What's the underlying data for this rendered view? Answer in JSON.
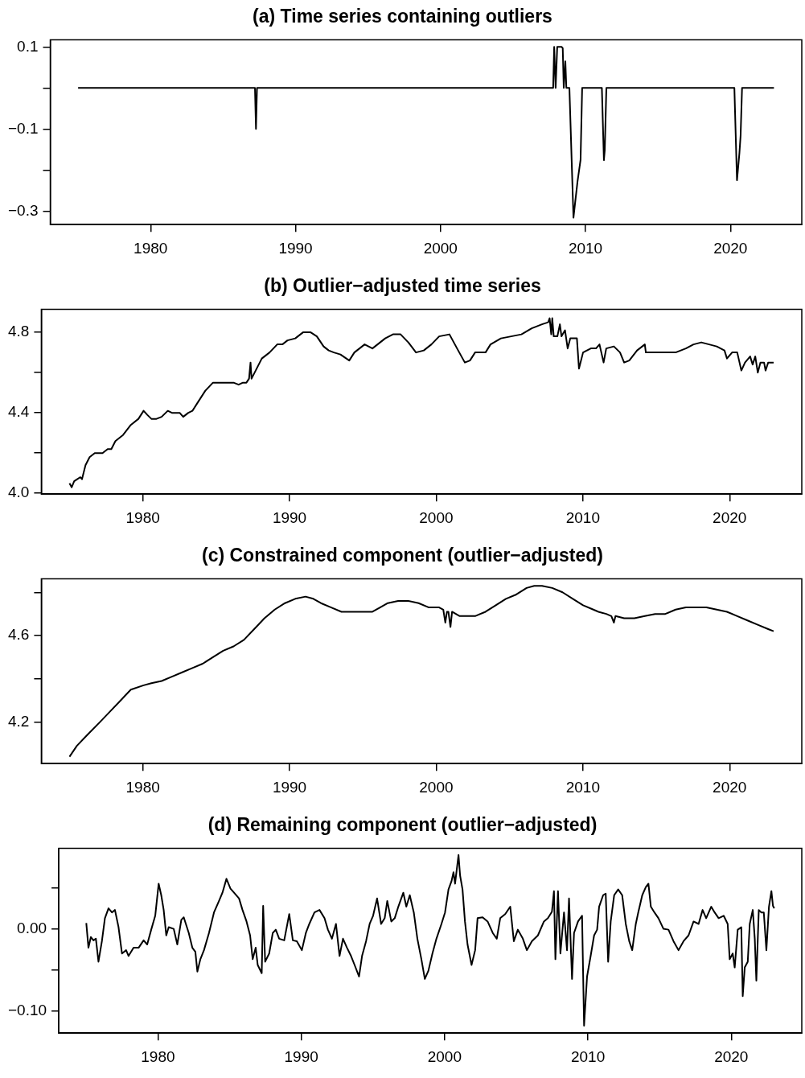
{
  "chart_data": [
    {
      "type": "line",
      "title": "(a) Time series containing outliers",
      "color": "#000000",
      "xlim": [
        1973.08,
        2024.92
      ],
      "xticks": [
        1980,
        1990,
        2000,
        2010,
        2020
      ],
      "ylim": [
        -0.333,
        0.117
      ],
      "yticks": [
        0.1,
        {
          "value": 0,
          "label": null
        },
        {
          "value": -0.1,
          "label": "−0.1"
        },
        {
          "value": -0.2,
          "label": null
        },
        {
          "value": -0.3,
          "label": "−0.3"
        }
      ],
      "x": [
        1975,
        1987.2,
        1987.27,
        1987.34,
        2007.77,
        2007.84,
        2007.94,
        2008.05,
        2008.36,
        2008.43,
        2008.5,
        2008.61,
        2008.68,
        2008.89,
        2009.17,
        2009.45,
        2009.66,
        2009.77,
        2011.13,
        2011.27,
        2011.33,
        2011.44,
        2020.27,
        2020.45,
        2020.62,
        2020.7,
        2020.8,
        2023
      ],
      "values": [
        0,
        0,
        -0.1,
        0,
        0,
        0.1,
        0,
        0.1,
        0.1,
        0.097,
        0,
        0.065,
        0,
        0,
        -0.316,
        -0.228,
        -0.175,
        0,
        0,
        -0.176,
        -0.151,
        0,
        0,
        -0.225,
        -0.158,
        -0.116,
        0,
        0
      ]
    },
    {
      "type": "line",
      "title": "(b) Outlier−adjusted time series",
      "color": "#000000",
      "xlim": [
        1973.08,
        2024.92
      ],
      "xticks": [
        1980,
        1990,
        2000,
        2010,
        2020
      ],
      "ylim": [
        3.996,
        4.914
      ],
      "yticks": [
        {
          "value": 4,
          "label": "4.0"
        },
        {
          "value": 4.2,
          "label": null
        },
        4.4,
        {
          "value": 4.6,
          "label": null
        },
        4.8
      ],
      "x": [
        1975,
        1975.15,
        1975.32,
        1975.74,
        1975.85,
        1976.09,
        1976.37,
        1976.72,
        1977.07,
        1977.25,
        1977.6,
        1977.85,
        1978.13,
        1978.65,
        1979.18,
        1979.7,
        1980.05,
        1980.3,
        1980.58,
        1980.93,
        1981.28,
        1981.7,
        1981.98,
        1982.51,
        1982.75,
        1983.1,
        1983.38,
        1983.73,
        1984.26,
        1984.78,
        1985.13,
        1985.66,
        1986.18,
        1986.53,
        1986.82,
        1987.06,
        1987.24,
        1987.34,
        1987.41,
        1987.76,
        1988.11,
        1988.64,
        1989.16,
        1989.51,
        1989.86,
        1990.39,
        1990.92,
        1991.44,
        1991.86,
        1992.32,
        1992.67,
        1993.02,
        1993.47,
        1994.07,
        1994.42,
        1995.12,
        1995.65,
        1996,
        1996.52,
        1997.05,
        1997.57,
        1998.1,
        1998.62,
        1999.15,
        1999.67,
        2000.2,
        2000.9,
        2001.42,
        2001.95,
        2002.3,
        2002.65,
        2003.36,
        2003.7,
        2004.41,
        2005.11,
        2005.81,
        2006.51,
        2007.21,
        2007.63,
        2007.73,
        2007.84,
        2007.91,
        2008.01,
        2008.26,
        2008.43,
        2008.54,
        2008.78,
        2008.96,
        2009.14,
        2009.59,
        2009.73,
        2010.01,
        2010.54,
        2010.89,
        2011.13,
        2011.41,
        2011.59,
        2012.11,
        2012.53,
        2012.81,
        2013.16,
        2013.69,
        2014.22,
        2014.29,
        2014.74,
        2015.27,
        2015.79,
        2016.32,
        2017.02,
        2017.54,
        2018.07,
        2018.6,
        2019.12,
        2019.65,
        2019.82,
        2020.17,
        2020.52,
        2020.8,
        2021.05,
        2021.4,
        2021.57,
        2021.75,
        2021.92,
        2022.1,
        2022.35,
        2022.45,
        2022.63,
        2023
      ],
      "values": [
        4.05,
        4.03,
        4.06,
        4.08,
        4.07,
        4.14,
        4.18,
        4.2,
        4.2,
        4.2,
        4.22,
        4.22,
        4.26,
        4.29,
        4.34,
        4.37,
        4.41,
        4.39,
        4.37,
        4.37,
        4.38,
        4.41,
        4.4,
        4.4,
        4.38,
        4.4,
        4.41,
        4.45,
        4.51,
        4.55,
        4.55,
        4.55,
        4.55,
        4.54,
        4.55,
        4.55,
        4.57,
        4.65,
        4.57,
        4.62,
        4.67,
        4.7,
        4.74,
        4.74,
        4.76,
        4.77,
        4.8,
        4.8,
        4.78,
        4.73,
        4.71,
        4.7,
        4.69,
        4.66,
        4.7,
        4.74,
        4.72,
        4.74,
        4.77,
        4.79,
        4.79,
        4.75,
        4.7,
        4.71,
        4.74,
        4.78,
        4.79,
        4.72,
        4.65,
        4.66,
        4.7,
        4.7,
        4.74,
        4.77,
        4.78,
        4.79,
        4.82,
        4.84,
        4.85,
        4.87,
        4.79,
        4.87,
        4.78,
        4.78,
        4.84,
        4.78,
        4.81,
        4.72,
        4.77,
        4.77,
        4.62,
        4.7,
        4.72,
        4.72,
        4.74,
        4.65,
        4.72,
        4.73,
        4.7,
        4.65,
        4.66,
        4.71,
        4.74,
        4.7,
        4.7,
        4.7,
        4.7,
        4.7,
        4.72,
        4.74,
        4.75,
        4.74,
        4.73,
        4.71,
        4.67,
        4.7,
        4.7,
        4.61,
        4.65,
        4.68,
        4.64,
        4.68,
        4.6,
        4.65,
        4.65,
        4.61,
        4.65,
        4.65
      ]
    },
    {
      "type": "line",
      "title": "(c) Constrained component (outlier−adjusted)",
      "color": "#000000",
      "xlim": [
        1973.08,
        2024.92
      ],
      "xticks": [
        1980,
        1990,
        2000,
        2010,
        2020
      ],
      "ylim": [
        4.008,
        4.862
      ],
      "yticks": [
        4.2,
        {
          "value": 4.4,
          "label": null
        },
        4.6,
        {
          "value": 4.8,
          "label": null
        }
      ],
      "x": [
        1975,
        1975.5,
        1976.2,
        1977.07,
        1977.78,
        1978.48,
        1979.18,
        1980.05,
        1980.58,
        1981.28,
        1981.98,
        1982.68,
        1983.38,
        1984.08,
        1984.78,
        1985.48,
        1986.18,
        1986.89,
        1987.59,
        1988.29,
        1988.99,
        1989.69,
        1990.39,
        1991.09,
        1991.62,
        1992.14,
        1992.84,
        1993.54,
        1994.24,
        1994.94,
        1995.65,
        1996.17,
        1996.7,
        1997.4,
        1998.1,
        1998.8,
        1999.5,
        2000.2,
        2000.48,
        2000.62,
        2000.73,
        2000.83,
        2000.97,
        2001.08,
        2001.6,
        2002.13,
        2002.65,
        2003.36,
        2004.06,
        2004.75,
        2005.46,
        2006.16,
        2006.68,
        2007.21,
        2007.91,
        2008.61,
        2009.31,
        2010.01,
        2010.71,
        2011.06,
        2011.59,
        2011.94,
        2012.11,
        2012.22,
        2012.81,
        2013.51,
        2014.22,
        2014.92,
        2015.62,
        2016.32,
        2017.02,
        2017.72,
        2018.42,
        2019.12,
        2019.82,
        2020.52,
        2021.22,
        2021.92,
        2022.63,
        2023
      ],
      "values": [
        4.04,
        4.09,
        4.14,
        4.2,
        4.25,
        4.3,
        4.35,
        4.37,
        4.38,
        4.39,
        4.41,
        4.43,
        4.45,
        4.47,
        4.5,
        4.53,
        4.55,
        4.58,
        4.63,
        4.68,
        4.72,
        4.75,
        4.77,
        4.78,
        4.77,
        4.75,
        4.73,
        4.71,
        4.71,
        4.71,
        4.71,
        4.73,
        4.75,
        4.76,
        4.76,
        4.75,
        4.73,
        4.73,
        4.72,
        4.66,
        4.71,
        4.71,
        4.64,
        4.71,
        4.69,
        4.69,
        4.69,
        4.71,
        4.74,
        4.77,
        4.79,
        4.82,
        4.83,
        4.83,
        4.82,
        4.8,
        4.77,
        4.74,
        4.72,
        4.71,
        4.7,
        4.69,
        4.66,
        4.69,
        4.68,
        4.68,
        4.69,
        4.7,
        4.7,
        4.72,
        4.73,
        4.73,
        4.73,
        4.72,
        4.71,
        4.69,
        4.67,
        4.65,
        4.63,
        4.62
      ]
    },
    {
      "type": "line",
      "title": "(d) Remaining component (outlier−adjusted)",
      "color": "#000000",
      "xlim": [
        1973.08,
        2024.92
      ],
      "xticks": [
        1980,
        1990,
        2000,
        2010,
        2020
      ],
      "ylim": [
        -0.127,
        0.098
      ],
      "yticks": [
        {
          "value": -0.1,
          "label": "−0.10"
        },
        {
          "value": -0.05,
          "label": null
        },
        {
          "value": 0,
          "label": "0.00"
        },
        {
          "value": 0.05,
          "label": null
        }
      ],
      "x": [
        1975,
        1975.15,
        1975.32,
        1975.5,
        1975.67,
        1975.85,
        1976.09,
        1976.3,
        1976.55,
        1976.79,
        1977,
        1977.25,
        1977.49,
        1977.78,
        1977.95,
        1978.3,
        1978.65,
        1979,
        1979.25,
        1979.53,
        1979.81,
        1980.05,
        1980.23,
        1980.4,
        1980.58,
        1980.75,
        1981.1,
        1981.35,
        1981.63,
        1981.8,
        1982.15,
        1982.4,
        1982.61,
        1982.75,
        1982.96,
        1983.21,
        1983.56,
        1983.91,
        1984.26,
        1984.5,
        1984.78,
        1985.06,
        1985.31,
        1985.66,
        1985.9,
        1986.18,
        1986.43,
        1986.61,
        1986.82,
        1986.96,
        1987.24,
        1987.34,
        1987.48,
        1987.76,
        1988.01,
        1988.22,
        1988.46,
        1988.81,
        1989.16,
        1989.41,
        1989.69,
        1990.04,
        1990.32,
        1990.56,
        1990.92,
        1991.27,
        1991.62,
        1991.86,
        1992.14,
        1992.42,
        1992.67,
        1992.91,
        1993.19,
        1993.47,
        1993.72,
        1994.03,
        1994.24,
        1994.52,
        1994.77,
        1995.01,
        1995.29,
        1995.57,
        1995.82,
        1996,
        1996.28,
        1996.52,
        1996.77,
        1997.12,
        1997.33,
        1997.57,
        1997.85,
        1998.1,
        1998.38,
        1998.62,
        1998.87,
        1999.15,
        1999.43,
        1999.78,
        2000.03,
        2000.27,
        2000.48,
        2000.62,
        2000.73,
        2000.97,
        2001.08,
        2001.25,
        2001.42,
        2001.6,
        2001.88,
        2002.13,
        2002.3,
        2002.65,
        2003,
        2003.36,
        2003.64,
        2003.88,
        2004.23,
        2004.58,
        2004.83,
        2005.11,
        2005.46,
        2005.74,
        2006.09,
        2006.51,
        2006.93,
        2007.21,
        2007.49,
        2007.63,
        2007.73,
        2007.91,
        2008.08,
        2008.33,
        2008.54,
        2008.68,
        2008.89,
        2009.03,
        2009.31,
        2009.59,
        2009.73,
        2009.94,
        2010.19,
        2010.43,
        2010.64,
        2010.78,
        2011.06,
        2011.24,
        2011.41,
        2011.59,
        2011.83,
        2012.11,
        2012.39,
        2012.64,
        2012.88,
        2013.09,
        2013.34,
        2013.51,
        2013.79,
        2014.04,
        2014.22,
        2014.39,
        2014.64,
        2014.92,
        2015.27,
        2015.62,
        2015.97,
        2016.32,
        2016.67,
        2017.02,
        2017.37,
        2017.72,
        2018,
        2018.25,
        2018.6,
        2018.84,
        2019.12,
        2019.47,
        2019.75,
        2019.89,
        2020.1,
        2020.24,
        2020.45,
        2020.7,
        2020.8,
        2020.94,
        2021.15,
        2021.29,
        2021.5,
        2021.64,
        2021.75,
        2021.92,
        2022.1,
        2022.27,
        2022.45,
        2022.63,
        2022.8,
        2022.91,
        2023
      ],
      "values": [
        0.007,
        -0.023,
        -0.01,
        -0.014,
        -0.012,
        -0.04,
        -0.015,
        0.013,
        0.025,
        0.02,
        0.023,
        0.002,
        -0.03,
        -0.026,
        -0.033,
        -0.023,
        -0.023,
        -0.014,
        -0.019,
        -0.001,
        0.016,
        0.055,
        0.041,
        0.023,
        -0.008,
        0.002,
        0,
        -0.019,
        0.011,
        0.014,
        -0.005,
        -0.023,
        -0.028,
        -0.052,
        -0.037,
        -0.026,
        -0.005,
        0.02,
        0.034,
        0.044,
        0.061,
        0.049,
        0.044,
        0.037,
        0.023,
        0.009,
        -0.008,
        -0.037,
        -0.023,
        -0.044,
        -0.054,
        0.028,
        -0.04,
        -0.03,
        -0.005,
        -0.001,
        -0.012,
        -0.014,
        0.018,
        -0.014,
        -0.015,
        -0.026,
        -0.005,
        0.006,
        0.02,
        0.023,
        0.013,
        -0.001,
        -0.012,
        0.006,
        -0.033,
        -0.012,
        -0.023,
        -0.033,
        -0.044,
        -0.058,
        -0.033,
        -0.015,
        0.006,
        0.016,
        0.037,
        0.006,
        0.013,
        0.034,
        0.009,
        0.013,
        0.027,
        0.044,
        0.027,
        0.041,
        0.02,
        -0.012,
        -0.037,
        -0.061,
        -0.051,
        -0.03,
        -0.012,
        0.006,
        0.02,
        0.048,
        0.058,
        0.069,
        0.055,
        0.09,
        0.065,
        0.048,
        0.009,
        -0.019,
        -0.044,
        -0.026,
        0.013,
        0.014,
        0.009,
        -0.005,
        -0.012,
        0.013,
        0.018,
        0.027,
        -0.015,
        -0.001,
        -0.012,
        -0.026,
        -0.015,
        -0.008,
        0.009,
        0.013,
        0.021,
        0.046,
        -0.037,
        0.046,
        -0.03,
        0.02,
        -0.026,
        0.037,
        -0.061,
        -0.005,
        0.009,
        0.016,
        -0.118,
        -0.058,
        -0.033,
        -0.008,
        -0.001,
        0.027,
        0.041,
        0.043,
        -0.04,
        0.009,
        0.041,
        0.048,
        0.041,
        0.006,
        -0.015,
        -0.026,
        0.006,
        0.02,
        0.041,
        0.051,
        0.055,
        0.027,
        0.02,
        0.013,
        0,
        -0.001,
        -0.015,
        -0.026,
        -0.015,
        -0.008,
        0.009,
        0.006,
        0.023,
        0.013,
        0.027,
        0.02,
        0.013,
        0.016,
        0.006,
        -0.037,
        -0.03,
        -0.047,
        -0.001,
        0.002,
        -0.082,
        -0.047,
        -0.04,
        0.006,
        0.023,
        -0.012,
        -0.063,
        0.023,
        0.02,
        0.02,
        -0.026,
        0.027,
        0.046,
        0.028,
        0.025
      ]
    }
  ]
}
